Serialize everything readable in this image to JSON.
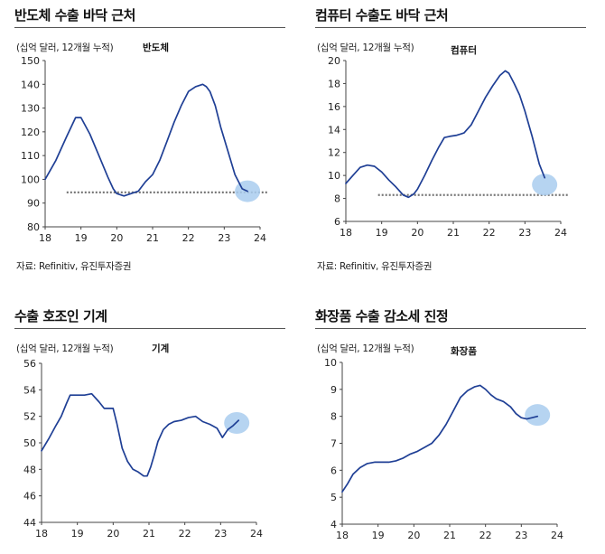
{
  "panels": [
    {
      "title": "반도체 수출 바닥 근처",
      "unit": "(십억 달러, 12개월 누적)",
      "series_label": "반도체",
      "source": "자료: Refinitiv, 유진투자증권"
    },
    {
      "title": "컴퓨터 수출도 바닥 근처",
      "unit": "(십억 달러, 12개월 누적)",
      "series_label": "컴퓨터",
      "source": "자료: Refinitiv, 유진투자증권"
    },
    {
      "title": "수출 호조인 기계",
      "unit": "(십억 달러, 12개월 누적)",
      "series_label": "기계",
      "source": ""
    },
    {
      "title": "화장품 수출 감소세 진정",
      "unit": "(십억 달러, 12개월 누적)",
      "series_label": "화장품",
      "source": ""
    }
  ],
  "colors": {
    "line": "#1f3f95",
    "reference": "#777777",
    "highlight": "#a9cdee"
  },
  "chart_data": [
    {
      "type": "line",
      "title": "반도체 수출 바닥 근처",
      "ylabel": "(십억 달러, 12개월 누적)",
      "xlim": [
        18,
        24
      ],
      "ylim": [
        80,
        150
      ],
      "xticks": [
        18,
        19,
        20,
        21,
        22,
        23,
        24
      ],
      "yticks": [
        80,
        90,
        100,
        110,
        120,
        130,
        140,
        150
      ],
      "series": [
        {
          "name": "반도체",
          "x": [
            18.0,
            18.3,
            18.6,
            18.85,
            19.0,
            19.25,
            19.5,
            19.75,
            19.9,
            20.0,
            20.2,
            20.4,
            20.6,
            20.8,
            21.0,
            21.2,
            21.4,
            21.6,
            21.8,
            22.0,
            22.2,
            22.4,
            22.5,
            22.6,
            22.75,
            22.9,
            23.1,
            23.3,
            23.5,
            23.65
          ],
          "y": [
            100,
            108,
            118,
            126,
            126,
            119,
            110,
            101,
            96,
            94,
            93,
            94,
            95,
            99,
            102,
            108,
            116,
            124,
            131,
            137,
            139,
            140,
            139,
            137,
            131,
            122,
            112,
            102,
            96,
            95
          ]
        }
      ],
      "reference": {
        "y": 94.5,
        "x_from": 18.6,
        "x_to": 24.2
      },
      "highlight": {
        "x": 23.65,
        "y": 95
      }
    },
    {
      "type": "line",
      "title": "컴퓨터 수출도 바닥 근처",
      "ylabel": "(십억 달러, 12개월 누적)",
      "xlim": [
        18,
        24
      ],
      "ylim": [
        6,
        20
      ],
      "xticks": [
        18,
        19,
        20,
        21,
        22,
        23,
        24
      ],
      "yticks": [
        6,
        8,
        10,
        12,
        14,
        16,
        18,
        20
      ],
      "series": [
        {
          "name": "컴퓨터",
          "x": [
            18.0,
            18.2,
            18.4,
            18.6,
            18.8,
            19.0,
            19.2,
            19.4,
            19.6,
            19.75,
            19.9,
            20.0,
            20.2,
            20.4,
            20.6,
            20.75,
            20.9,
            21.1,
            21.3,
            21.5,
            21.7,
            21.9,
            22.1,
            22.3,
            22.45,
            22.55,
            22.7,
            22.85,
            23.0,
            23.2,
            23.4,
            23.55
          ],
          "y": [
            9.3,
            10.0,
            10.7,
            10.9,
            10.8,
            10.3,
            9.6,
            9.0,
            8.3,
            8.1,
            8.4,
            8.8,
            10.0,
            11.3,
            12.5,
            13.3,
            13.4,
            13.5,
            13.7,
            14.4,
            15.6,
            16.8,
            17.8,
            18.7,
            19.1,
            18.9,
            18.0,
            17.0,
            15.6,
            13.4,
            11.0,
            9.8
          ]
        }
      ],
      "reference": {
        "y": 8.3,
        "x_from": 18.9,
        "x_to": 24.2
      },
      "highlight": {
        "x": 23.55,
        "y": 9.2
      }
    },
    {
      "type": "line",
      "title": "수출 호조인 기계",
      "ylabel": "(십억 달러, 12개월 누적)",
      "xlim": [
        18,
        24
      ],
      "ylim": [
        44,
        56
      ],
      "xticks": [
        18,
        19,
        20,
        21,
        22,
        23,
        24
      ],
      "yticks": [
        44,
        46,
        48,
        50,
        52,
        54,
        56
      ],
      "series": [
        {
          "name": "기계",
          "x": [
            18.0,
            18.2,
            18.4,
            18.55,
            18.7,
            18.8,
            19.0,
            19.2,
            19.4,
            19.6,
            19.75,
            19.85,
            20.0,
            20.1,
            20.25,
            20.4,
            20.55,
            20.7,
            20.85,
            20.95,
            21.05,
            21.15,
            21.25,
            21.4,
            21.55,
            21.7,
            21.9,
            22.1,
            22.3,
            22.5,
            22.7,
            22.9,
            23.05,
            23.2,
            23.35,
            23.5
          ],
          "y": [
            49.4,
            50.3,
            51.3,
            52.0,
            53.0,
            53.6,
            53.6,
            53.6,
            53.7,
            53.1,
            52.6,
            52.6,
            52.6,
            51.5,
            49.6,
            48.6,
            48.0,
            47.8,
            47.5,
            47.5,
            48.2,
            49.1,
            50.1,
            51.0,
            51.4,
            51.6,
            51.7,
            51.9,
            52.0,
            51.6,
            51.4,
            51.1,
            50.4,
            51.0,
            51.3,
            51.7
          ]
        }
      ],
      "highlight": {
        "x": 23.45,
        "y": 51.5
      }
    },
    {
      "type": "line",
      "title": "화장품 수출 감소세 진정",
      "ylabel": "(십억 달러, 12개월 누적)",
      "xlim": [
        18,
        24
      ],
      "ylim": [
        4,
        10
      ],
      "xticks": [
        18,
        19,
        20,
        21,
        22,
        23,
        24
      ],
      "yticks": [
        4,
        5,
        6,
        7,
        8,
        9,
        10
      ],
      "series": [
        {
          "name": "화장품",
          "x": [
            18.0,
            18.15,
            18.3,
            18.5,
            18.7,
            18.9,
            19.1,
            19.3,
            19.5,
            19.7,
            19.9,
            20.1,
            20.3,
            20.5,
            20.7,
            20.9,
            21.1,
            21.3,
            21.5,
            21.7,
            21.85,
            22.0,
            22.15,
            22.3,
            22.5,
            22.7,
            22.85,
            23.0,
            23.15,
            23.3,
            23.45
          ],
          "y": [
            5.2,
            5.5,
            5.85,
            6.1,
            6.25,
            6.3,
            6.3,
            6.3,
            6.35,
            6.45,
            6.6,
            6.7,
            6.85,
            7.0,
            7.3,
            7.7,
            8.2,
            8.7,
            8.95,
            9.1,
            9.15,
            9.0,
            8.8,
            8.65,
            8.55,
            8.35,
            8.1,
            7.95,
            7.9,
            7.95,
            8.0
          ]
        }
      ],
      "highlight": {
        "x": 23.45,
        "y": 8.05
      }
    }
  ]
}
